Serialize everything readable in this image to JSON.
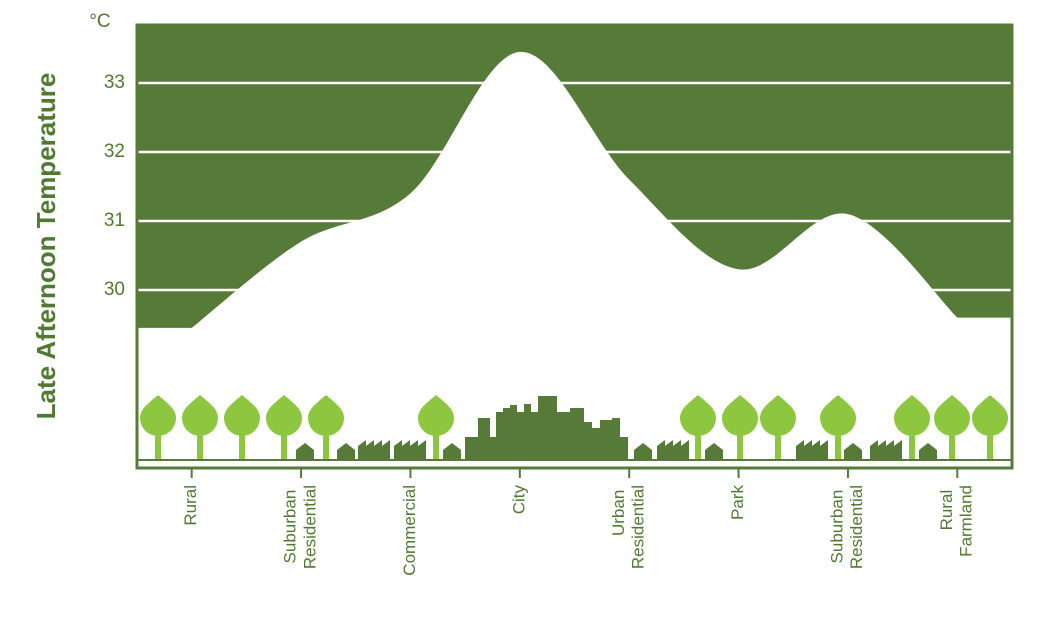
{
  "chart_data": {
    "type": "area",
    "y_label": "Late Afternoon Temperature",
    "y_unit": "°C",
    "categories": [
      "Rural",
      "Suburban Residential",
      "Commercial",
      "City",
      "Urban Residential",
      "Park",
      "Suburban Residential",
      "Rural Farmland"
    ],
    "values": [
      29.45,
      30.7,
      31.4,
      33.45,
      31.6,
      30.3,
      31.1,
      29.6
    ],
    "color": "#567a37",
    "ylim": [
      27.42,
      33.84
    ],
    "yticks": [
      30,
      31,
      32,
      33
    ],
    "grid": true
  }
}
